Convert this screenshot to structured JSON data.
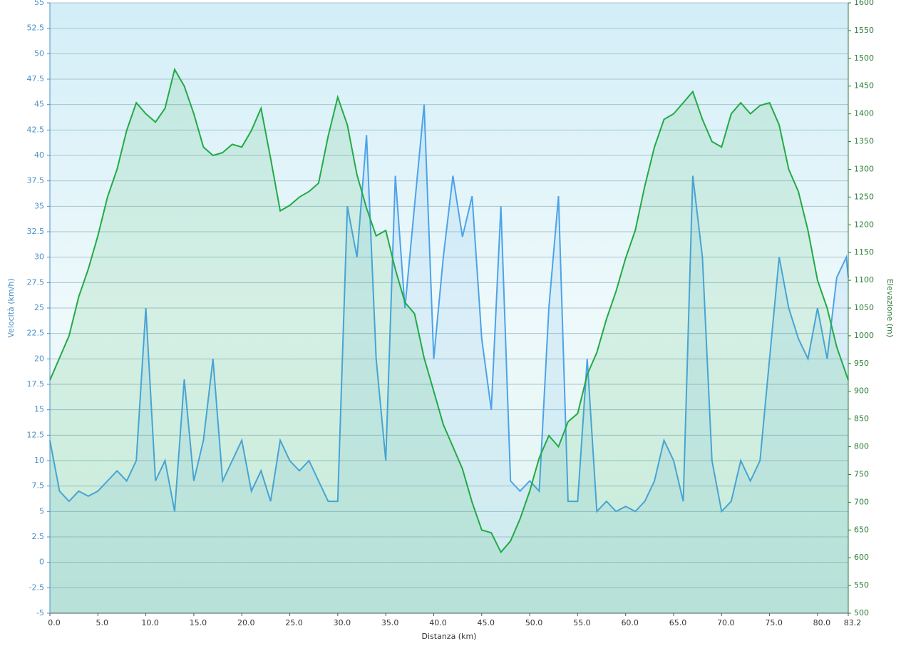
{
  "chart_data": {
    "type": "line",
    "xlabel": "Distanza  (km)",
    "ylabel": "Velocità (km/h)",
    "y2label": "Elevazione (m)",
    "x": [
      0,
      1,
      2,
      3,
      4,
      5,
      6,
      7,
      8,
      9,
      10,
      11,
      12,
      13,
      14,
      15,
      16,
      17,
      18,
      19,
      20,
      21,
      22,
      23,
      24,
      25,
      26,
      27,
      28,
      29,
      30,
      31,
      32,
      33,
      34,
      35,
      36,
      37,
      38,
      39,
      40,
      41,
      42,
      43,
      44,
      45,
      46,
      47,
      48,
      49,
      50,
      51,
      52,
      53,
      54,
      55,
      56,
      57,
      58,
      59,
      60,
      61,
      62,
      63,
      64,
      65,
      66,
      67,
      68,
      69,
      70,
      71,
      72,
      73,
      74,
      75,
      76,
      77,
      78,
      79,
      80,
      81,
      82,
      83,
      83.2
    ],
    "series": [
      {
        "name": "Velocità",
        "color": "#4da3e8",
        "axis": "y",
        "values": [
          12,
          7,
          6,
          7,
          6.5,
          7,
          8,
          9,
          8,
          10,
          25,
          8,
          10,
          5,
          18,
          8,
          12,
          20,
          8,
          10,
          12,
          7,
          9,
          6,
          12,
          10,
          9,
          10,
          8,
          6,
          6,
          35,
          30,
          42,
          20,
          10,
          38,
          25,
          35,
          45,
          20,
          30,
          38,
          32,
          36,
          22,
          15,
          35,
          8,
          7,
          8,
          7,
          25,
          36,
          6,
          6,
          20,
          5,
          6,
          5,
          5.5,
          5,
          6,
          8,
          12,
          10,
          6,
          38,
          30,
          10,
          5,
          6,
          10,
          8,
          10,
          20,
          30,
          25,
          22,
          20,
          25,
          20,
          28,
          30,
          28
        ]
      },
      {
        "name": "Elevazione",
        "color": "#22aa44",
        "axis": "y2",
        "values": [
          920,
          960,
          1000,
          1070,
          1120,
          1180,
          1250,
          1300,
          1370,
          1420,
          1400,
          1385,
          1410,
          1480,
          1450,
          1400,
          1340,
          1325,
          1330,
          1345,
          1340,
          1370,
          1410,
          1320,
          1225,
          1235,
          1250,
          1260,
          1275,
          1360,
          1430,
          1380,
          1290,
          1230,
          1180,
          1190,
          1120,
          1060,
          1040,
          960,
          900,
          840,
          800,
          760,
          700,
          650,
          645,
          610,
          630,
          670,
          720,
          780,
          820,
          800,
          845,
          860,
          930,
          970,
          1030,
          1080,
          1140,
          1190,
          1270,
          1340,
          1390,
          1400,
          1420,
          1440,
          1390,
          1350,
          1340,
          1400,
          1420,
          1400,
          1415,
          1420,
          1380,
          1300,
          1260,
          1190,
          1100,
          1050,
          980,
          930,
          920
        ]
      }
    ],
    "xlim": [
      0,
      83.2
    ],
    "xticks": [
      {
        "value": 0,
        "label": "0.0"
      },
      {
        "value": 5,
        "label": "5.0"
      },
      {
        "value": 10,
        "label": "10.0"
      },
      {
        "value": 15,
        "label": "15.0"
      },
      {
        "value": 20,
        "label": "20.0"
      },
      {
        "value": 25,
        "label": "25.0"
      },
      {
        "value": 30,
        "label": "30.0"
      },
      {
        "value": 35,
        "label": "35.0"
      },
      {
        "value": 40,
        "label": "40.0"
      },
      {
        "value": 45,
        "label": "45.0"
      },
      {
        "value": 50,
        "label": "50.0"
      },
      {
        "value": 55,
        "label": "55.0"
      },
      {
        "value": 60,
        "label": "60.0"
      },
      {
        "value": 65,
        "label": "65.0"
      },
      {
        "value": 70,
        "label": "70.0"
      },
      {
        "value": 75,
        "label": "75.0"
      },
      {
        "value": 80,
        "label": "80.0"
      },
      83.2
    ],
    "ylim": [
      -5,
      55
    ],
    "yticks": [
      -5,
      -2.5,
      0,
      2.5,
      5,
      7.5,
      10,
      12.5,
      15,
      17.5,
      20,
      22.5,
      25,
      27.5,
      30,
      32.5,
      35,
      37.5,
      40,
      42.5,
      45,
      47.5,
      50,
      52.5,
      55
    ],
    "y2lim": [
      500,
      1600
    ],
    "y2ticks": [
      500,
      550,
      600,
      650,
      700,
      750,
      800,
      850,
      900,
      950,
      1000,
      1050,
      1100,
      1150,
      1200,
      1250,
      1300,
      1350,
      1400,
      1450,
      1500,
      1550,
      1600
    ],
    "grid": true
  }
}
